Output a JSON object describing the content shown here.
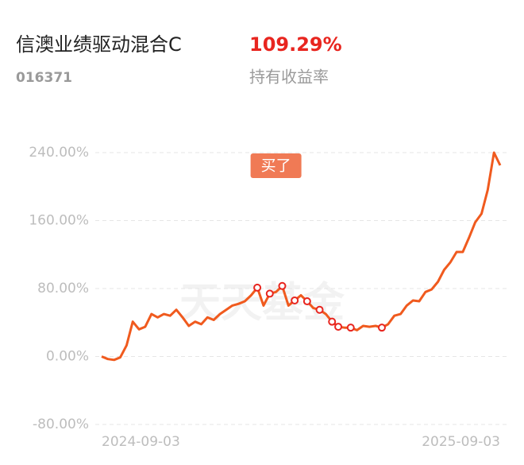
{
  "chart_data": {
    "type": "line",
    "title": "信澳业绩驱动混合C",
    "code": "016371",
    "return_value": "109.29%",
    "return_label": "持有收益率",
    "buy_label": "买了",
    "watermark": "天天基金",
    "categories": [
      "2024-09-03",
      null,
      null,
      null,
      null,
      null,
      null,
      null,
      null,
      null,
      null,
      null,
      null,
      null,
      null,
      null,
      null,
      null,
      null,
      null,
      null,
      null,
      null,
      null,
      null,
      null,
      null,
      null,
      null,
      null,
      null,
      null,
      null,
      null,
      null,
      null,
      null,
      null,
      null,
      null,
      null,
      null,
      null,
      null,
      null,
      null,
      null,
      null,
      null,
      null,
      null,
      null,
      null,
      null,
      null,
      null,
      null,
      null,
      null,
      null,
      null,
      null,
      null,
      null,
      "2025-09-03"
    ],
    "series": [
      {
        "color": "#f05a1e",
        "values": [
          0,
          -3,
          -4,
          -1,
          13,
          41,
          32,
          35,
          50,
          46,
          50,
          48,
          55,
          46,
          36,
          41,
          38,
          46,
          43,
          50,
          55,
          60,
          62,
          65,
          72,
          81,
          60,
          74,
          76,
          83,
          60,
          66,
          72,
          65,
          57,
          55,
          50,
          41,
          35,
          34,
          34,
          31,
          36,
          35,
          36,
          34,
          38,
          48,
          50,
          60,
          66,
          65,
          76,
          79,
          88,
          102,
          111,
          123,
          123,
          140,
          158,
          168,
          196,
          240,
          225
        ]
      }
    ],
    "ylim": [
      -80,
      250
    ],
    "yticks": [
      {
        "value": -80,
        "label": "-80.00%"
      },
      {
        "value": 0,
        "label": "0.00%"
      },
      {
        "value": 80,
        "label": "80.00%"
      },
      {
        "value": 160,
        "label": "160.00%"
      },
      {
        "value": 240,
        "label": "240.00%"
      }
    ],
    "grid": true
  }
}
